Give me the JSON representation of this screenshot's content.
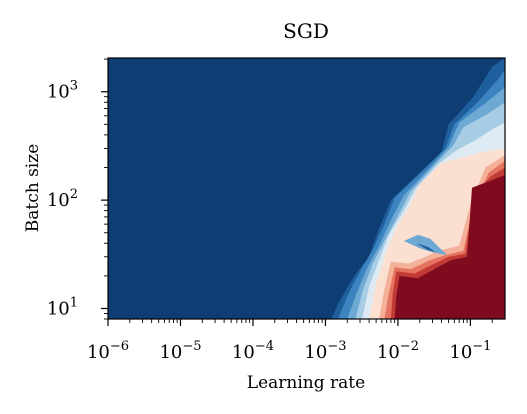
{
  "chart_data": {
    "type": "heatmap",
    "title": "SGD",
    "xlabel": "Learning rate",
    "ylabel": "Batch size",
    "x_scale": "log",
    "y_scale": "log",
    "xlim": [
      1e-06,
      0.3
    ],
    "ylim": [
      8,
      2048
    ],
    "x_major_ticks": [
      {
        "base": "10",
        "exp": "−6",
        "value": 1e-06
      },
      {
        "base": "10",
        "exp": "−5",
        "value": 1e-05
      },
      {
        "base": "10",
        "exp": "−4",
        "value": 0.0001
      },
      {
        "base": "10",
        "exp": "−3",
        "value": 0.001
      },
      {
        "base": "10",
        "exp": "−2",
        "value": 0.01
      },
      {
        "base": "10",
        "exp": "−1",
        "value": 0.1
      }
    ],
    "y_major_ticks": [
      {
        "base": "10",
        "exp": "1",
        "value": 10
      },
      {
        "base": "10",
        "exp": "2",
        "value": 100
      },
      {
        "base": "10",
        "exp": "3",
        "value": 1000
      }
    ],
    "colormap": [
      "#0d3d73",
      "#1f5f9e",
      "#3b84bf",
      "#6ea9d3",
      "#a7cde5",
      "#ddeaf3",
      "#fbe0d2",
      "#f5b09a",
      "#e4735f",
      "#c23a35",
      "#800b1f"
    ],
    "grid": false,
    "legend": "none",
    "regions": [
      {
        "level": 1,
        "points": [
          [
            0.0012,
            8
          ],
          [
            0.0016,
            12
          ],
          [
            0.0025,
            20
          ],
          [
            0.004,
            30
          ],
          [
            0.0055,
            55
          ],
          [
            0.008,
            100
          ],
          [
            0.02,
            180
          ],
          [
            0.04,
            280
          ],
          [
            0.05,
            500
          ],
          [
            0.11,
            900
          ],
          [
            0.2,
            1700
          ],
          [
            0.3,
            2048
          ],
          [
            0.3,
            8
          ]
        ]
      },
      {
        "level": 2,
        "points": [
          [
            0.0015,
            8
          ],
          [
            0.002,
            13
          ],
          [
            0.003,
            22
          ],
          [
            0.0045,
            35
          ],
          [
            0.0065,
            60
          ],
          [
            0.009,
            105
          ],
          [
            0.023,
            190
          ],
          [
            0.045,
            300
          ],
          [
            0.06,
            500
          ],
          [
            0.13,
            820
          ],
          [
            0.24,
            1300
          ],
          [
            0.3,
            1600
          ],
          [
            0.3,
            8
          ]
        ]
      },
      {
        "level": 3,
        "points": [
          [
            0.002,
            8
          ],
          [
            0.0027,
            14
          ],
          [
            0.0038,
            24
          ],
          [
            0.0055,
            38
          ],
          [
            0.008,
            65
          ],
          [
            0.012,
            110
          ],
          [
            0.028,
            200
          ],
          [
            0.05,
            310
          ],
          [
            0.07,
            520
          ],
          [
            0.15,
            760
          ],
          [
            0.3,
            1100
          ],
          [
            0.3,
            8
          ]
        ]
      },
      {
        "level": 4,
        "points": [
          [
            0.0026,
            8
          ],
          [
            0.0033,
            15
          ],
          [
            0.0045,
            26
          ],
          [
            0.0065,
            42
          ],
          [
            0.01,
            72
          ],
          [
            0.015,
            120
          ],
          [
            0.032,
            210
          ],
          [
            0.058,
            320
          ],
          [
            0.08,
            470
          ],
          [
            0.17,
            620
          ],
          [
            0.3,
            800
          ],
          [
            0.3,
            8
          ]
        ]
      },
      {
        "level": 5,
        "points": [
          [
            0.0032,
            8
          ],
          [
            0.004,
            16
          ],
          [
            0.0055,
            28
          ],
          [
            0.0075,
            48
          ],
          [
            0.012,
            80
          ],
          [
            0.018,
            130
          ],
          [
            0.036,
            215
          ],
          [
            0.065,
            290
          ],
          [
            0.12,
            360
          ],
          [
            0.2,
            450
          ],
          [
            0.3,
            520
          ],
          [
            0.3,
            8
          ]
        ]
      },
      {
        "level": 6,
        "points": [
          [
            0.004,
            8
          ],
          [
            0.005,
            17
          ],
          [
            0.0065,
            30
          ],
          [
            0.009,
            52
          ],
          [
            0.014,
            85
          ],
          [
            0.02,
            140
          ],
          [
            0.04,
            220
          ],
          [
            0.08,
            250
          ],
          [
            0.15,
            280
          ],
          [
            0.3,
            300
          ],
          [
            0.3,
            8
          ]
        ]
      },
      {
        "level": 7,
        "points": [
          [
            0.0055,
            8
          ],
          [
            0.0065,
            15
          ],
          [
            0.008,
            27
          ],
          [
            0.014,
            26
          ],
          [
            0.024,
            30
          ],
          [
            0.035,
            34
          ],
          [
            0.07,
            38
          ],
          [
            0.1,
            90
          ],
          [
            0.16,
            200
          ],
          [
            0.3,
            260
          ],
          [
            0.3,
            8
          ]
        ]
      },
      {
        "level": 8,
        "points": [
          [
            0.0065,
            8
          ],
          [
            0.0075,
            14
          ],
          [
            0.009,
            24
          ],
          [
            0.015,
            23
          ],
          [
            0.028,
            28
          ],
          [
            0.045,
            31
          ],
          [
            0.08,
            34
          ],
          [
            0.11,
            90
          ],
          [
            0.18,
            180
          ],
          [
            0.3,
            230
          ],
          [
            0.3,
            8
          ]
        ]
      },
      {
        "level": 9,
        "points": [
          [
            0.008,
            8
          ],
          [
            0.0085,
            14
          ],
          [
            0.0095,
            22
          ],
          [
            0.017,
            21
          ],
          [
            0.032,
            26
          ],
          [
            0.05,
            30
          ],
          [
            0.085,
            32
          ],
          [
            0.11,
            110
          ],
          [
            0.19,
            165
          ],
          [
            0.3,
            200
          ],
          [
            0.3,
            8
          ]
        ]
      },
      {
        "level": 10,
        "points": [
          [
            0.009,
            8
          ],
          [
            0.0095,
            13
          ],
          [
            0.0105,
            20
          ],
          [
            0.019,
            19
          ],
          [
            0.035,
            24
          ],
          [
            0.055,
            28
          ],
          [
            0.09,
            30
          ],
          [
            0.105,
            130
          ],
          [
            0.3,
            170
          ],
          [
            0.3,
            8
          ]
        ]
      },
      {
        "level": 3,
        "points": [
          [
            0.012,
            42
          ],
          [
            0.02,
            36
          ],
          [
            0.03,
            33
          ],
          [
            0.048,
            31
          ],
          [
            0.028,
            44
          ],
          [
            0.019,
            48
          ]
        ]
      },
      {
        "level": 1,
        "points": [
          [
            0.018,
            40
          ],
          [
            0.025,
            35
          ],
          [
            0.033,
            33
          ],
          [
            0.026,
            37
          ]
        ]
      }
    ]
  }
}
